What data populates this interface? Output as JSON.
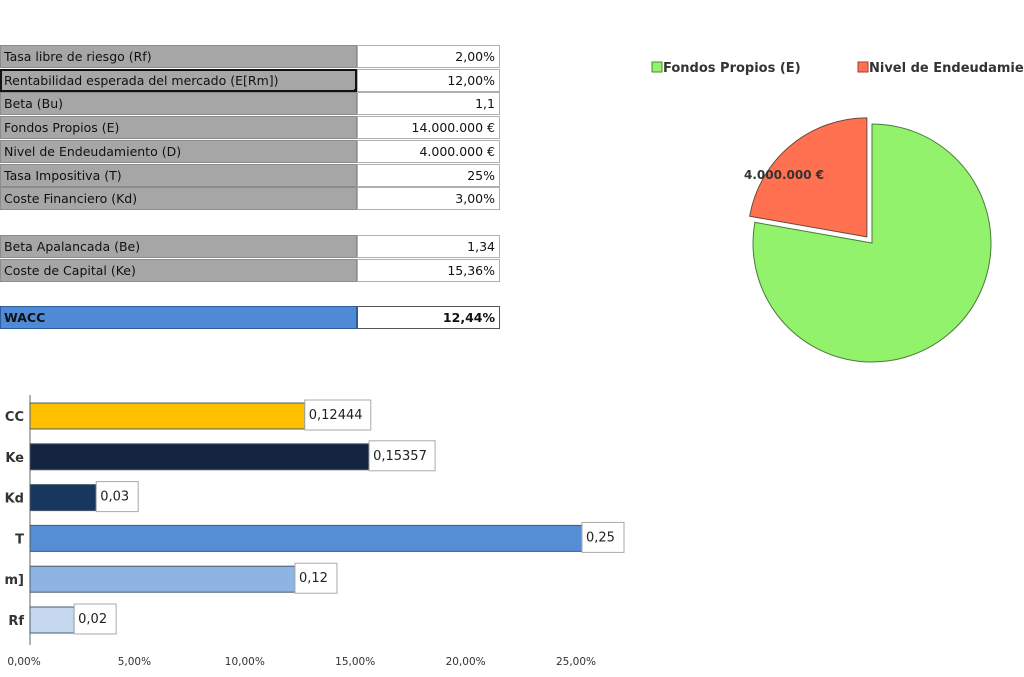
{
  "inputs": [
    {
      "label": "Tasa libre de riesgo (Rf)",
      "value": "2,00%"
    },
    {
      "label": "Rentabilidad esperada del mercado (E[Rm])",
      "value": "12,00%"
    },
    {
      "label": "Beta (Bu)",
      "value": "1,1"
    },
    {
      "label": "Fondos Propios (E)",
      "value": "14.000.000 €"
    },
    {
      "label": "Nivel de Endeudamiento (D)",
      "value": "4.000.000 €"
    },
    {
      "label": "Tasa Impositiva (T)",
      "value": "25%"
    },
    {
      "label": "Coste Financiero  (Kd)",
      "value": "3,00%"
    }
  ],
  "results": [
    {
      "label": "Beta Apalancada (Be)",
      "value": "1,34"
    },
    {
      "label": "Coste de  Capital (Ke)",
      "value": "15,36%"
    }
  ],
  "wacc": {
    "label": "WACC",
    "value": "12,44%"
  },
  "selected_cell": "Rentabilidad esperada del mercado (E[Rm])",
  "chart_data": [
    {
      "type": "bar",
      "orientation": "horizontal",
      "categories": [
        "CC",
        "Ke",
        "Kd",
        "T",
        "m]",
        "Rf"
      ],
      "values": [
        0.12444,
        0.15357,
        0.03,
        0.25,
        0.12,
        0.02
      ],
      "data_labels": [
        "0,12444",
        "0,15357",
        "0,03",
        "0,25",
        "0,12",
        "0,02"
      ],
      "colors": [
        "#ffc000",
        "#14233f",
        "#17375e",
        "#558ed5",
        "#8db4e2",
        "#c6d9f1"
      ],
      "xlim": [
        0,
        0.25
      ],
      "xticks": [
        "0,00%",
        "5,00%",
        "10,00%",
        "15,00%",
        "20,00%",
        "25,00%"
      ],
      "grid": false
    },
    {
      "type": "pie",
      "series": [
        {
          "name": "Fondos Propios (E)",
          "value": 14000000,
          "color": "#92f26c"
        },
        {
          "name": "Nivel de Endeudamie",
          "value": 4000000,
          "color": "#ff7150",
          "exploded": true
        }
      ],
      "data_labels": [
        "4.000.000 €"
      ],
      "legend": "top"
    }
  ]
}
